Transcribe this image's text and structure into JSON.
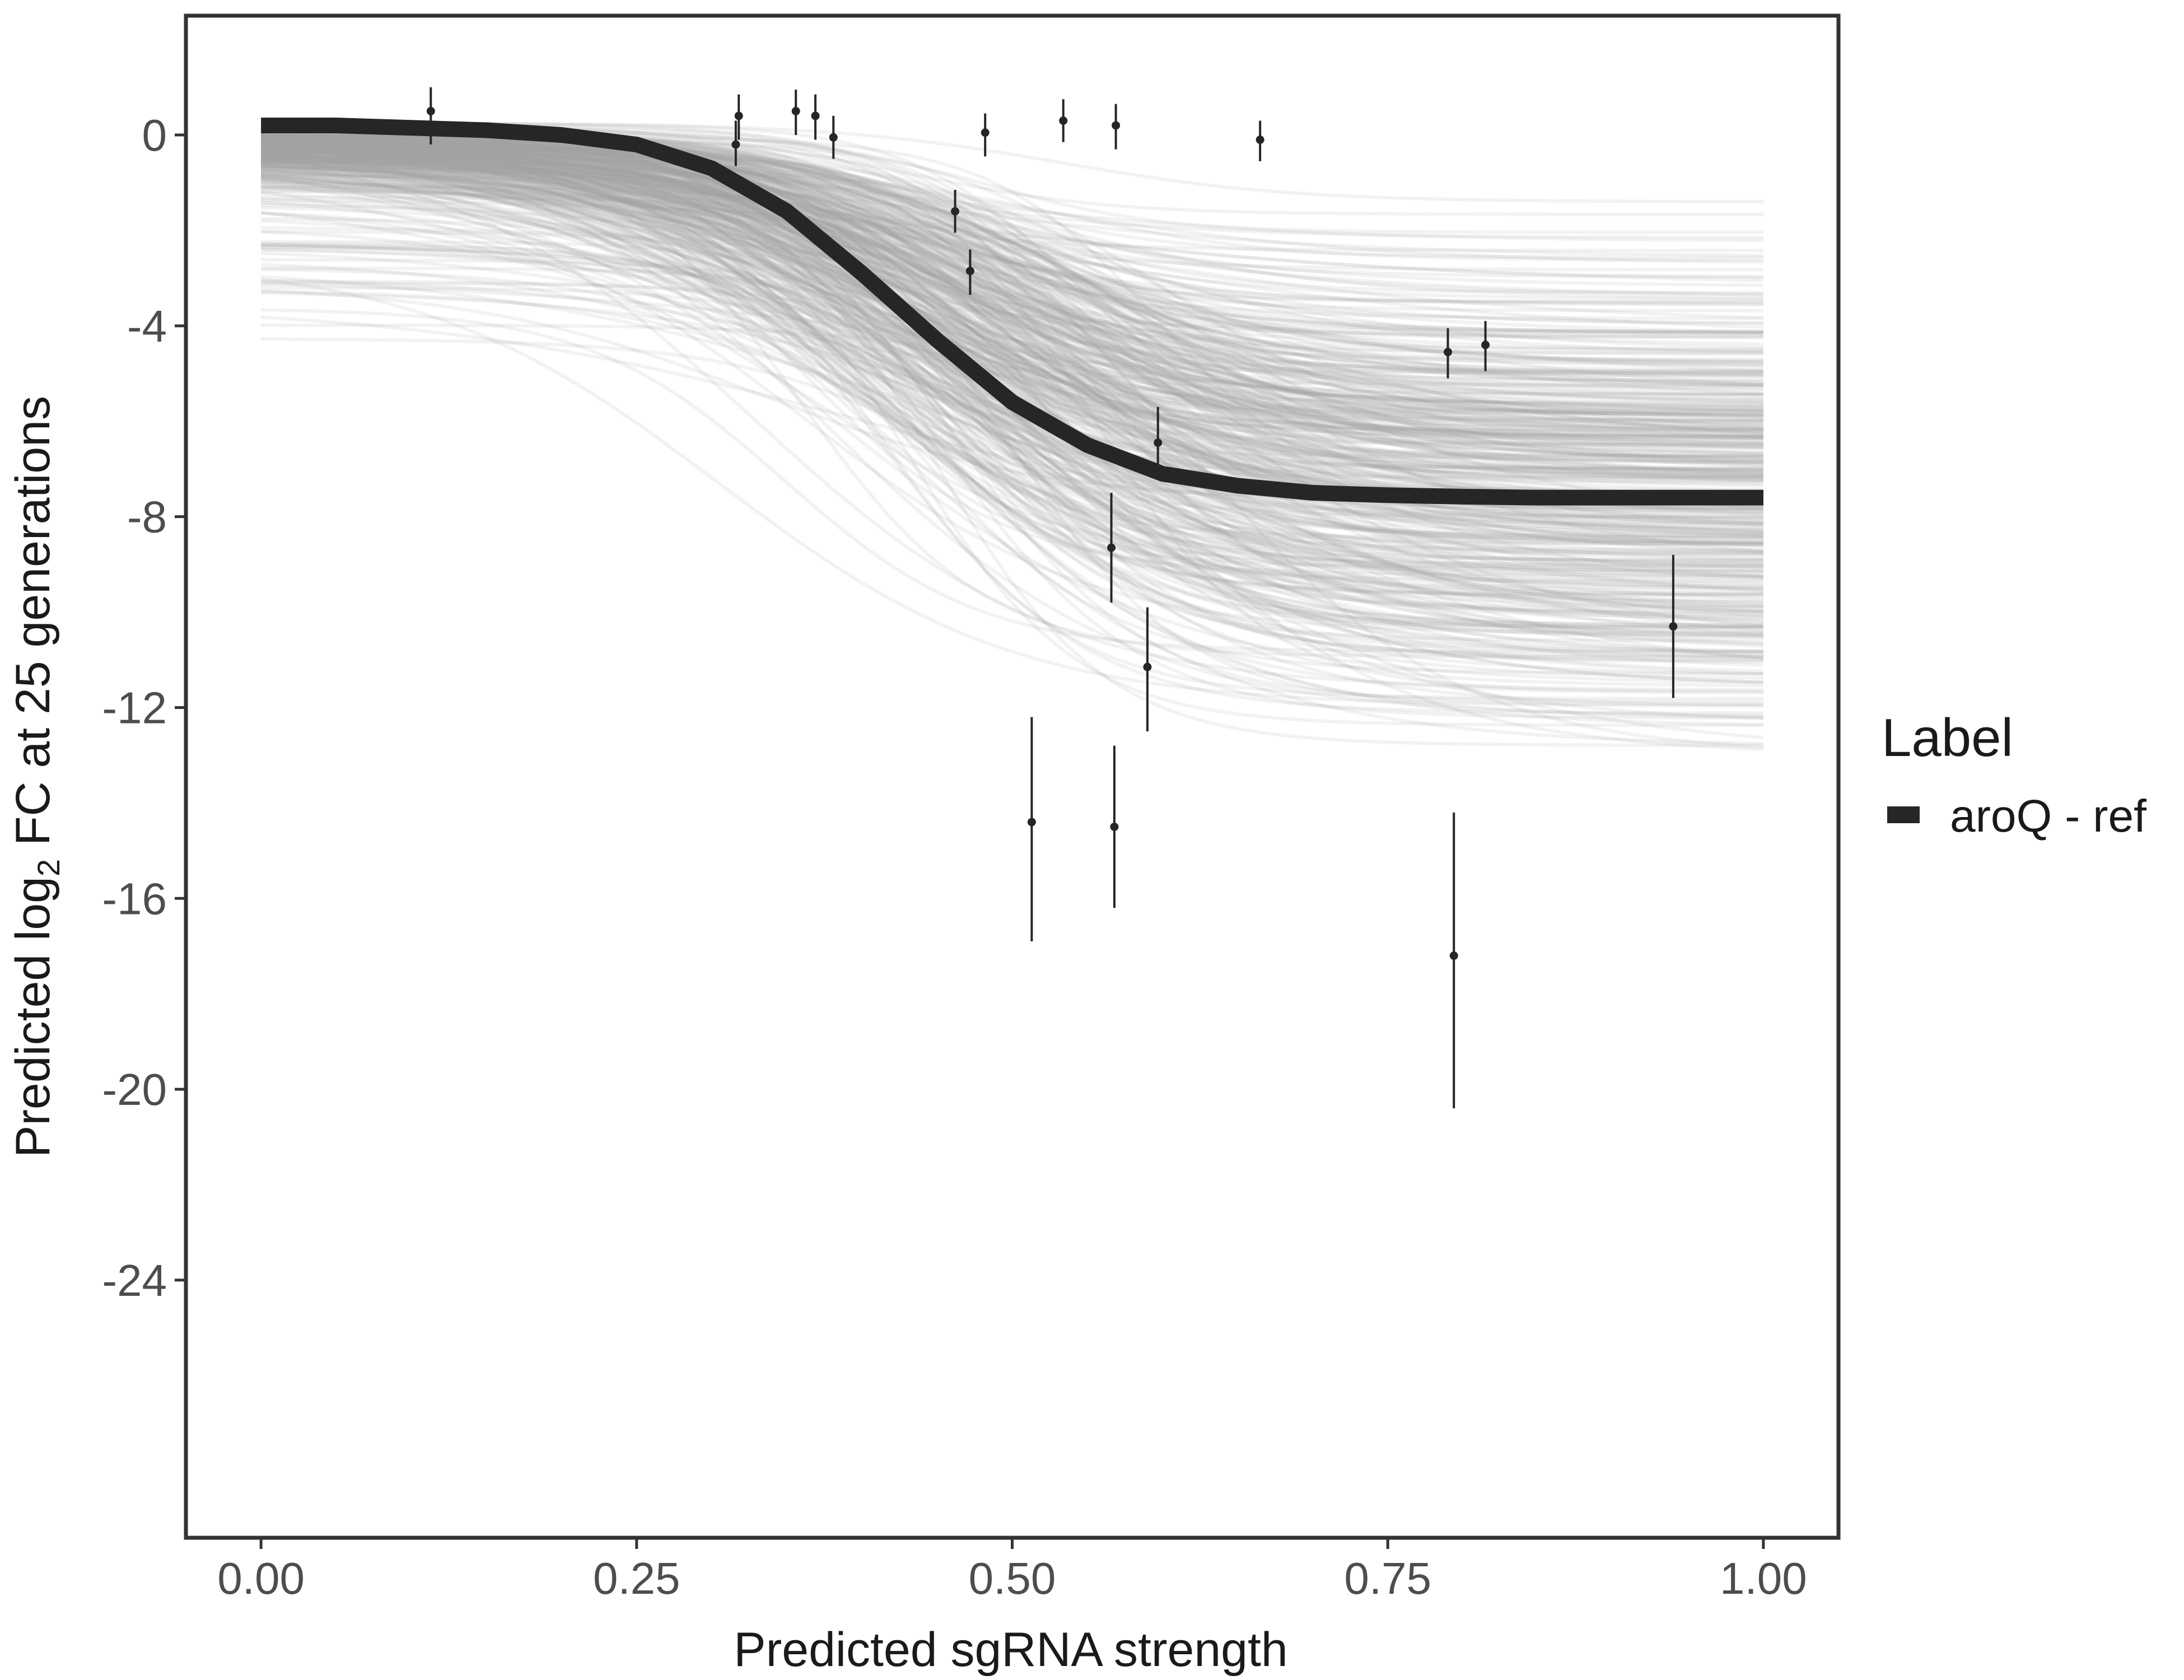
{
  "chart_data": {
    "type": "line",
    "xlabel": "Predicted sgRNA strength",
    "ylabel_prefix": "Predicted  log",
    "ylabel_sub": "2",
    "ylabel_suffix": " FC at 25 generations",
    "xlim": [
      -0.05,
      1.05
    ],
    "ylim": [
      -29.4,
      2.5
    ],
    "x_ticks": [
      0.0,
      0.25,
      0.5,
      0.75,
      1.0
    ],
    "x_tick_labels": [
      "0.00",
      "0.25",
      "0.50",
      "0.75",
      "1.00"
    ],
    "y_ticks": [
      0,
      -4,
      -8,
      -12,
      -16,
      -20,
      -24
    ],
    "y_tick_labels": [
      "0",
      "-4",
      "-8",
      "-12",
      "-16",
      "-20",
      "-24"
    ],
    "grid": false,
    "legend": {
      "title": "Label",
      "position": "right",
      "entries": [
        {
          "label": "aroQ - ref",
          "color": "#262626"
        }
      ]
    },
    "series": [
      {
        "name": "aroQ - ref",
        "kind": "fit-curve",
        "color": "#262626",
        "x": [
          0.0,
          0.05,
          0.1,
          0.15,
          0.2,
          0.25,
          0.3,
          0.35,
          0.4,
          0.45,
          0.5,
          0.55,
          0.6,
          0.65,
          0.7,
          0.75,
          0.8,
          0.85,
          0.9,
          0.95,
          1.0
        ],
        "y": [
          0.2,
          0.2,
          0.15,
          0.1,
          0.0,
          -0.2,
          -0.7,
          -1.6,
          -2.9,
          -4.3,
          -5.6,
          -6.5,
          -7.1,
          -7.35,
          -7.5,
          -7.55,
          -7.58,
          -7.6,
          -7.6,
          -7.6,
          -7.6
        ]
      }
    ],
    "posterior_draws": {
      "color": "#a6a6a6",
      "count": 450,
      "description_in_image": false
    },
    "points": [
      {
        "x": 0.113,
        "y": 0.5,
        "lo": -0.2,
        "hi": 1.0
      },
      {
        "x": 0.316,
        "y": -0.2,
        "lo": -0.65,
        "hi": 0.3
      },
      {
        "x": 0.318,
        "y": 0.4,
        "lo": -0.1,
        "hi": 0.85
      },
      {
        "x": 0.356,
        "y": 0.5,
        "lo": 0.0,
        "hi": 0.95
      },
      {
        "x": 0.369,
        "y": 0.4,
        "lo": -0.1,
        "hi": 0.85
      },
      {
        "x": 0.381,
        "y": -0.05,
        "lo": -0.5,
        "hi": 0.4
      },
      {
        "x": 0.462,
        "y": -1.6,
        "lo": -2.05,
        "hi": -1.15
      },
      {
        "x": 0.472,
        "y": -2.85,
        "lo": -3.35,
        "hi": -2.4
      },
      {
        "x": 0.482,
        "y": 0.05,
        "lo": -0.45,
        "hi": 0.45
      },
      {
        "x": 0.513,
        "y": -14.4,
        "lo": -16.9,
        "hi": -12.2
      },
      {
        "x": 0.534,
        "y": 0.3,
        "lo": -0.15,
        "hi": 0.75
      },
      {
        "x": 0.566,
        "y": -8.65,
        "lo": -9.8,
        "hi": -7.5
      },
      {
        "x": 0.568,
        "y": -14.5,
        "lo": -16.2,
        "hi": -12.8
      },
      {
        "x": 0.569,
        "y": 0.2,
        "lo": -0.3,
        "hi": 0.65
      },
      {
        "x": 0.59,
        "y": -11.15,
        "lo": -12.5,
        "hi": -9.9
      },
      {
        "x": 0.597,
        "y": -6.45,
        "lo": -7.05,
        "hi": -5.7
      },
      {
        "x": 0.665,
        "y": -0.1,
        "lo": -0.55,
        "hi": 0.3
      },
      {
        "x": 0.79,
        "y": -4.55,
        "lo": -5.1,
        "hi": -4.05
      },
      {
        "x": 0.794,
        "y": -17.2,
        "lo": -20.4,
        "hi": -14.2
      },
      {
        "x": 0.815,
        "y": -4.4,
        "lo": -4.95,
        "hi": -3.9
      },
      {
        "x": 0.94,
        "y": -10.3,
        "lo": -11.8,
        "hi": -8.8
      }
    ]
  }
}
